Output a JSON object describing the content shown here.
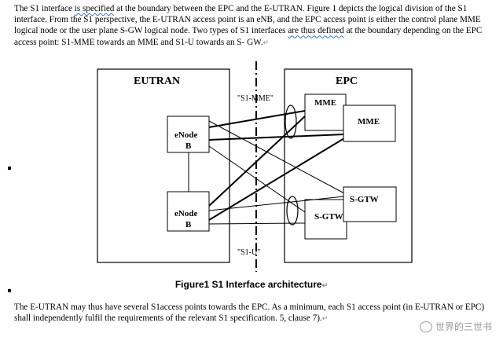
{
  "paragraph1": {
    "text_a": "The S1 interface ",
    "text_wavy1": "is specified",
    "text_b": " at the boundary between the EPC and the E-UTRAN. Figure 1 depicts the logical division of the S1 interface. From the S1 perspective, the E-UTRAN access point is an eNB, and the EPC access point is either the control plane MME logical node or the user plane S-GW logical node. Two types of S1 interfaces ",
    "text_wavy2": "are thus defined",
    "text_c": " at the boundary depending on the EPC access point: S1-MME towards an MME and S1-U towards an S- GW.",
    "return_mark": "↵"
  },
  "diagram": {
    "eutran_title": "EUTRAN",
    "epc_title": "EPC",
    "enb1_label_line1": "eNode",
    "enb1_label_line2": "B",
    "enb2_label_line1": "eNode",
    "enb2_label_line2": "B",
    "mme1_label": "MME",
    "mme2_label": "MME",
    "sgw1_label": "S-GTW",
    "sgw2_label": "S-GTW",
    "s1mme_label": "\"S1-MME\"",
    "s1u_label": "\"S1-U\""
  },
  "caption": {
    "text": "Figure1 S1 Interface architecture",
    "return_mark": "↵"
  },
  "paragraph2": {
    "text": "The E-UTRAN may thus have several S1access points towards the EPC. As a minimum, each S1 access point (in E-UTRAN or EPC) shall independently fulfil the requirements of the relevant S1 specification. 5, clause 7).",
    "return_mark": "↵"
  },
  "watermark": {
    "text": "世界的三世书"
  },
  "colors": {
    "wavy_underline": "#3a6fd8",
    "paragraph_mark": "#8a8a8a"
  }
}
